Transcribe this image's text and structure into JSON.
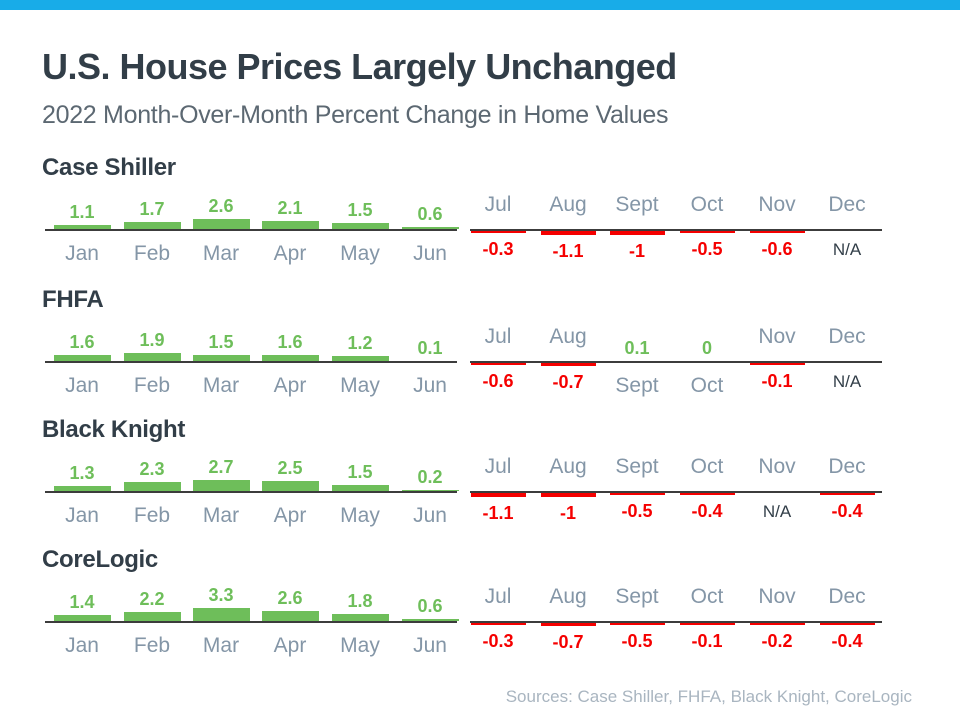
{
  "page": {
    "title": "U.S. House Prices Largely Unchanged",
    "subtitle": "2022 Month-Over-Month Percent Change in Home Values",
    "sources": "Sources: Case Shiller, FHFA, Black Knight, CoreLogic"
  },
  "colors": {
    "accent": "#18ACE8",
    "title": "#323E48",
    "subtitle": "#5C6872",
    "heading": "#323E48",
    "positive": "#6EBE5A",
    "negative": "#F50000",
    "month_label": "#8496A7",
    "na_label": "#323E48",
    "axis_line": "#3C3C3C",
    "sources": "#A9B5C0"
  },
  "chart_data": [
    {
      "type": "bar",
      "title": "Case Shiller",
      "categories": [
        "Jan",
        "Feb",
        "Mar",
        "Apr",
        "May",
        "Jun",
        "Jul",
        "Aug",
        "Sept",
        "Oct",
        "Nov",
        "Dec"
      ],
      "values": [
        1.1,
        1.7,
        2.6,
        2.1,
        1.5,
        0.6,
        -0.3,
        -1.1,
        -1,
        -0.5,
        -0.6,
        "N/A"
      ],
      "xlabel": "",
      "ylabel": "",
      "layout": {
        "baseline": 0,
        "value_labels": true,
        "grid": false
      }
    },
    {
      "type": "bar",
      "title": "FHFA",
      "categories": [
        "Jan",
        "Feb",
        "Mar",
        "Apr",
        "May",
        "Jun",
        "Jul",
        "Aug",
        "Sept",
        "Oct",
        "Nov",
        "Dec"
      ],
      "values": [
        1.6,
        1.9,
        1.5,
        1.6,
        1.2,
        0.1,
        -0.6,
        -0.7,
        0.1,
        0,
        -0.1,
        "N/A"
      ],
      "xlabel": "",
      "ylabel": "",
      "layout": {
        "baseline": 0,
        "value_labels": true,
        "grid": false
      }
    },
    {
      "type": "bar",
      "title": "Black Knight",
      "categories": [
        "Jan",
        "Feb",
        "Mar",
        "Apr",
        "May",
        "Jun",
        "Jul",
        "Aug",
        "Sept",
        "Oct",
        "Nov",
        "Dec"
      ],
      "values": [
        1.3,
        2.3,
        2.7,
        2.5,
        1.5,
        0.2,
        -1.1,
        -1,
        -0.5,
        -0.4,
        "N/A",
        -0.4
      ],
      "xlabel": "",
      "ylabel": "",
      "layout": {
        "baseline": 0,
        "value_labels": true,
        "grid": false
      }
    },
    {
      "type": "bar",
      "title": "CoreLogic",
      "categories": [
        "Jan",
        "Feb",
        "Mar",
        "Apr",
        "May",
        "Jun",
        "Jul",
        "Aug",
        "Sept",
        "Oct",
        "Nov",
        "Dec"
      ],
      "values": [
        1.4,
        2.2,
        3.3,
        2.6,
        1.8,
        0.6,
        -0.3,
        -0.7,
        -0.5,
        -0.1,
        -0.2,
        -0.4
      ],
      "xlabel": "",
      "ylabel": "",
      "layout": {
        "baseline": 0,
        "value_labels": true,
        "grid": false
      }
    }
  ]
}
